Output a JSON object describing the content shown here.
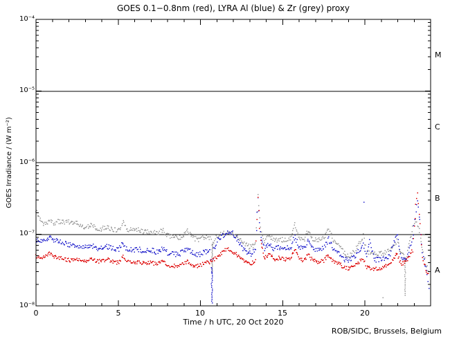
{
  "footer": {
    "credit": "ROB/SIDC, Brussels, Belgium"
  },
  "chart_data": {
    "type": "scatter",
    "title": "GOES 0.1−0.8nm (red), LYRA Al (blue) & Zr (grey) proxy",
    "xlabel": "Time / h UTC, 20 Oct 2020",
    "ylabel": "GOES Irradiance / (W m⁻²)",
    "x_range": [
      0,
      24
    ],
    "x_major_ticks": [
      0,
      5,
      10,
      15,
      20
    ],
    "x_minor_tick_step_h": 1,
    "x_tick_labels": [
      "0",
      "5",
      "10",
      "15",
      "20"
    ],
    "y_log10_range": [
      -8,
      -4
    ],
    "y_tick_labels": [
      "10⁻⁴",
      "10⁻⁵",
      "10⁻⁶",
      "10⁻⁷",
      "10⁻⁸"
    ],
    "hlines": [
      1e-05,
      1e-06,
      1e-07
    ],
    "class_labels": [
      {
        "label": "M",
        "log10_center": -4.5
      },
      {
        "label": "C",
        "log10_center": -5.5
      },
      {
        "label": "B",
        "log10_center": -6.5
      },
      {
        "label": "A",
        "log10_center": -7.5
      }
    ],
    "colors": {
      "goes_red": "#dd0000",
      "lyra_al_blue": "#2222cc",
      "lyra_zr_grey": "#9a9a9a",
      "axis": "#000000",
      "background": "#ffffff"
    },
    "series": [
      {
        "name": "LYRA Zr proxy (grey)",
        "color": "#9a9a9a",
        "points": [
          [
            0.0,
            2.2e-07
          ],
          [
            0.15,
            1.7e-07
          ],
          [
            0.4,
            1.42e-07
          ],
          [
            0.7,
            1.5e-07
          ],
          [
            0.9,
            1.55e-07
          ],
          [
            1.1,
            1.45e-07
          ],
          [
            1.4,
            1.5e-07
          ],
          [
            1.7,
            1.45e-07
          ],
          [
            1.9,
            1.5e-07
          ],
          [
            2.2,
            1.42e-07
          ],
          [
            2.5,
            1.45e-07
          ],
          [
            2.8,
            1.3e-07
          ],
          [
            3.1,
            1.25e-07
          ],
          [
            3.4,
            1.33e-07
          ],
          [
            3.7,
            1.22e-07
          ],
          [
            4.0,
            1.18e-07
          ],
          [
            4.3,
            1.28e-07
          ],
          [
            4.6,
            1.18e-07
          ],
          [
            5.0,
            1.12e-07
          ],
          [
            5.3,
            1.45e-07
          ],
          [
            5.5,
            1.18e-07
          ],
          [
            5.9,
            1.12e-07
          ],
          [
            6.2,
            1.18e-07
          ],
          [
            6.6,
            1.08e-07
          ],
          [
            7.0,
            1.1e-07
          ],
          [
            7.4,
            1.02e-07
          ],
          [
            7.7,
            1.15e-07
          ],
          [
            8.0,
            9.7e-08
          ],
          [
            8.4,
            9.2e-08
          ],
          [
            8.8,
            9e-08
          ],
          [
            9.2,
            1.1e-07
          ],
          [
            9.5,
            9e-08
          ],
          [
            9.9,
            8.4e-08
          ],
          [
            10.3,
            9.2e-08
          ],
          [
            10.6,
            8.6e-08
          ],
          [
            10.75,
            7e-08
          ],
          [
            11.0,
            9.5e-08
          ],
          [
            11.4,
            1.03e-07
          ],
          [
            11.8,
            1.05e-07
          ],
          [
            12.1,
            9.7e-08
          ],
          [
            12.4,
            8.2e-08
          ],
          [
            12.8,
            7e-08
          ],
          [
            13.1,
            6.6e-08
          ],
          [
            13.35,
            7.2e-08
          ],
          [
            13.5,
            3.6e-07
          ],
          [
            13.65,
            1.2e-07
          ],
          [
            13.9,
            8.2e-08
          ],
          [
            14.2,
            9.6e-08
          ],
          [
            14.5,
            8.2e-08
          ],
          [
            14.8,
            8.6e-08
          ],
          [
            15.1,
            8.2e-08
          ],
          [
            15.5,
            8.6e-08
          ],
          [
            15.75,
            1.35e-07
          ],
          [
            16.0,
            8.6e-08
          ],
          [
            16.3,
            8.2e-08
          ],
          [
            16.55,
            1.15e-07
          ],
          [
            16.8,
            8.6e-08
          ],
          [
            17.1,
            8.2e-08
          ],
          [
            17.5,
            8.8e-08
          ],
          [
            17.8,
            1.2e-07
          ],
          [
            18.1,
            8e-08
          ],
          [
            18.4,
            7.4e-08
          ],
          [
            18.7,
            5.6e-08
          ],
          [
            19.0,
            5e-08
          ],
          [
            19.4,
            5.8e-08
          ],
          [
            19.9,
            9.5e-08
          ],
          [
            20.1,
            5.8e-08
          ],
          [
            20.5,
            5.2e-08
          ],
          [
            21.0,
            5.4e-08
          ],
          [
            21.5,
            5.8e-08
          ],
          [
            21.95,
            8e-08
          ],
          [
            22.2,
            5.5e-08
          ],
          [
            22.5,
            4.5e-08
          ],
          [
            22.9,
            1.2e-07
          ],
          [
            23.1,
            1.6e-07
          ],
          [
            23.25,
            1.3e-07
          ],
          [
            23.5,
            6e-08
          ],
          [
            23.7,
            4e-08
          ],
          [
            23.9,
            3e-08
          ]
        ]
      },
      {
        "name": "LYRA Al proxy (blue)",
        "color": "#2222cc",
        "points": [
          [
            0.0,
            7.8e-08
          ],
          [
            0.3,
            8.2e-08
          ],
          [
            0.6,
            8.6e-08
          ],
          [
            0.85,
            8.8e-08
          ],
          [
            1.1,
            8.4e-08
          ],
          [
            1.4,
            8e-08
          ],
          [
            1.7,
            7.6e-08
          ],
          [
            2.0,
            7.2e-08
          ],
          [
            2.4,
            6.8e-08
          ],
          [
            2.8,
            6.6e-08
          ],
          [
            3.1,
            6.5e-08
          ],
          [
            3.4,
            7e-08
          ],
          [
            3.7,
            6.4e-08
          ],
          [
            4.0,
            6.3e-08
          ],
          [
            4.3,
            6.8e-08
          ],
          [
            4.6,
            6.3e-08
          ],
          [
            5.0,
            6e-08
          ],
          [
            5.3,
            7.5e-08
          ],
          [
            5.5,
            6.2e-08
          ],
          [
            5.9,
            6e-08
          ],
          [
            6.2,
            6.2e-08
          ],
          [
            6.6,
            5.8e-08
          ],
          [
            7.0,
            6e-08
          ],
          [
            7.4,
            5.6e-08
          ],
          [
            7.7,
            6.4e-08
          ],
          [
            8.0,
            5.5e-08
          ],
          [
            8.4,
            5.3e-08
          ],
          [
            8.8,
            5.4e-08
          ],
          [
            9.2,
            6.4e-08
          ],
          [
            9.5,
            5.5e-08
          ],
          [
            9.9,
            5.2e-08
          ],
          [
            10.3,
            5.8e-08
          ],
          [
            10.6,
            5.6e-08
          ],
          [
            10.72,
            3e-08
          ],
          [
            10.8,
            6.2e-08
          ],
          [
            11.1,
            8.6e-08
          ],
          [
            11.4,
            9.6e-08
          ],
          [
            11.7,
            1.04e-07
          ],
          [
            12.0,
            1.03e-07
          ],
          [
            12.2,
            8.8e-08
          ],
          [
            12.5,
            6.8e-08
          ],
          [
            12.8,
            5.6e-08
          ],
          [
            13.1,
            5.3e-08
          ],
          [
            13.35,
            6e-08
          ],
          [
            13.5,
            3.4e-07
          ],
          [
            13.65,
            1e-07
          ],
          [
            13.9,
            6.2e-08
          ],
          [
            14.2,
            7.2e-08
          ],
          [
            14.5,
            6.2e-08
          ],
          [
            14.8,
            6.6e-08
          ],
          [
            15.1,
            6.2e-08
          ],
          [
            15.5,
            6.6e-08
          ],
          [
            15.75,
            9.5e-08
          ],
          [
            16.0,
            6.5e-08
          ],
          [
            16.3,
            6.2e-08
          ],
          [
            16.55,
            8.2e-08
          ],
          [
            16.8,
            6.3e-08
          ],
          [
            17.1,
            6e-08
          ],
          [
            17.5,
            6.4e-08
          ],
          [
            17.8,
            8.6e-08
          ],
          [
            18.1,
            6e-08
          ],
          [
            18.4,
            5.6e-08
          ],
          [
            18.7,
            4.6e-08
          ],
          [
            19.0,
            4.2e-08
          ],
          [
            19.4,
            4.8e-08
          ],
          [
            19.9,
            7.5e-08
          ],
          [
            20.1,
            4.8e-08
          ],
          [
            20.3,
            8e-08
          ],
          [
            20.6,
            4.4e-08
          ],
          [
            21.0,
            4.5e-08
          ],
          [
            21.5,
            5e-08
          ],
          [
            21.95,
            1.05e-07
          ],
          [
            22.2,
            4.8e-08
          ],
          [
            22.5,
            4.3e-08
          ],
          [
            22.9,
            8e-08
          ],
          [
            23.1,
            2e-07
          ],
          [
            23.2,
            3e-07
          ],
          [
            23.35,
            1.5e-07
          ],
          [
            23.5,
            5.5e-08
          ],
          [
            23.7,
            3.5e-08
          ],
          [
            23.85,
            2.2e-08
          ],
          [
            23.95,
            1.6e-08
          ]
        ]
      },
      {
        "name": "GOES 0.1-0.8nm (red)",
        "color": "#dd0000",
        "points": [
          [
            0.0,
            5e-08
          ],
          [
            0.3,
            4.6e-08
          ],
          [
            0.6,
            5e-08
          ],
          [
            0.85,
            5.4e-08
          ],
          [
            1.1,
            4.9e-08
          ],
          [
            1.4,
            4.7e-08
          ],
          [
            1.7,
            4.5e-08
          ],
          [
            2.0,
            4.3e-08
          ],
          [
            2.4,
            4.5e-08
          ],
          [
            2.8,
            4.3e-08
          ],
          [
            3.1,
            4.3e-08
          ],
          [
            3.4,
            4.6e-08
          ],
          [
            3.7,
            4.2e-08
          ],
          [
            4.0,
            4.2e-08
          ],
          [
            4.3,
            4.5e-08
          ],
          [
            4.6,
            4.2e-08
          ],
          [
            5.0,
            4e-08
          ],
          [
            5.3,
            4.8e-08
          ],
          [
            5.5,
            4.1e-08
          ],
          [
            5.9,
            4e-08
          ],
          [
            6.2,
            4.1e-08
          ],
          [
            6.6,
            3.9e-08
          ],
          [
            7.0,
            4e-08
          ],
          [
            7.4,
            3.8e-08
          ],
          [
            7.7,
            4.3e-08
          ],
          [
            8.0,
            3.7e-08
          ],
          [
            8.4,
            3.6e-08
          ],
          [
            8.8,
            3.7e-08
          ],
          [
            9.2,
            4.2e-08
          ],
          [
            9.5,
            3.7e-08
          ],
          [
            9.9,
            3.6e-08
          ],
          [
            10.3,
            4e-08
          ],
          [
            10.6,
            4.1e-08
          ],
          [
            10.9,
            4.6e-08
          ],
          [
            11.2,
            5.2e-08
          ],
          [
            11.5,
            6e-08
          ],
          [
            11.65,
            6.4e-08
          ],
          [
            11.9,
            5.8e-08
          ],
          [
            12.2,
            5.2e-08
          ],
          [
            12.5,
            4.5e-08
          ],
          [
            12.8,
            4.1e-08
          ],
          [
            13.1,
            3.9e-08
          ],
          [
            13.35,
            4.3e-08
          ],
          [
            13.5,
            3.2e-07
          ],
          [
            13.65,
            8e-08
          ],
          [
            13.9,
            4.6e-08
          ],
          [
            14.2,
            5.2e-08
          ],
          [
            14.5,
            4.4e-08
          ],
          [
            14.8,
            4.7e-08
          ],
          [
            15.1,
            4.4e-08
          ],
          [
            15.5,
            4.6e-08
          ],
          [
            15.75,
            6e-08
          ],
          [
            16.0,
            4.5e-08
          ],
          [
            16.3,
            4.3e-08
          ],
          [
            16.55,
            5.2e-08
          ],
          [
            16.8,
            4.4e-08
          ],
          [
            17.1,
            4.1e-08
          ],
          [
            17.5,
            4.3e-08
          ],
          [
            17.8,
            5.2e-08
          ],
          [
            18.1,
            4.1e-08
          ],
          [
            18.4,
            3.9e-08
          ],
          [
            18.7,
            3.5e-08
          ],
          [
            19.0,
            3.3e-08
          ],
          [
            19.4,
            3.6e-08
          ],
          [
            19.9,
            4.6e-08
          ],
          [
            20.1,
            3.5e-08
          ],
          [
            20.5,
            3.3e-08
          ],
          [
            21.0,
            3.4e-08
          ],
          [
            21.5,
            3.7e-08
          ],
          [
            21.95,
            5.5e-08
          ],
          [
            22.2,
            3.8e-08
          ],
          [
            22.5,
            4.2e-08
          ],
          [
            22.9,
            6e-08
          ],
          [
            23.1,
            2.5e-07
          ],
          [
            23.2,
            3.6e-07
          ],
          [
            23.35,
            1.4e-07
          ],
          [
            23.5,
            5e-08
          ],
          [
            23.7,
            3.2e-08
          ],
          [
            23.9,
            2.5e-08
          ]
        ]
      }
    ],
    "dropout_streaks": [
      {
        "series": 1,
        "t": 10.7,
        "v_min": 1.1e-08
      },
      {
        "series": 0,
        "t": 10.72,
        "v_min": 3e-08
      },
      {
        "series": 0,
        "t": 22.45,
        "v_min": 1.4e-08
      }
    ],
    "stray_points": [
      {
        "series": 1,
        "t": 19.95,
        "v": 2.8e-07
      },
      {
        "series": 0,
        "t": 21.1,
        "v": 1.3e-08
      }
    ],
    "legend_position": "none",
    "grid": false
  }
}
